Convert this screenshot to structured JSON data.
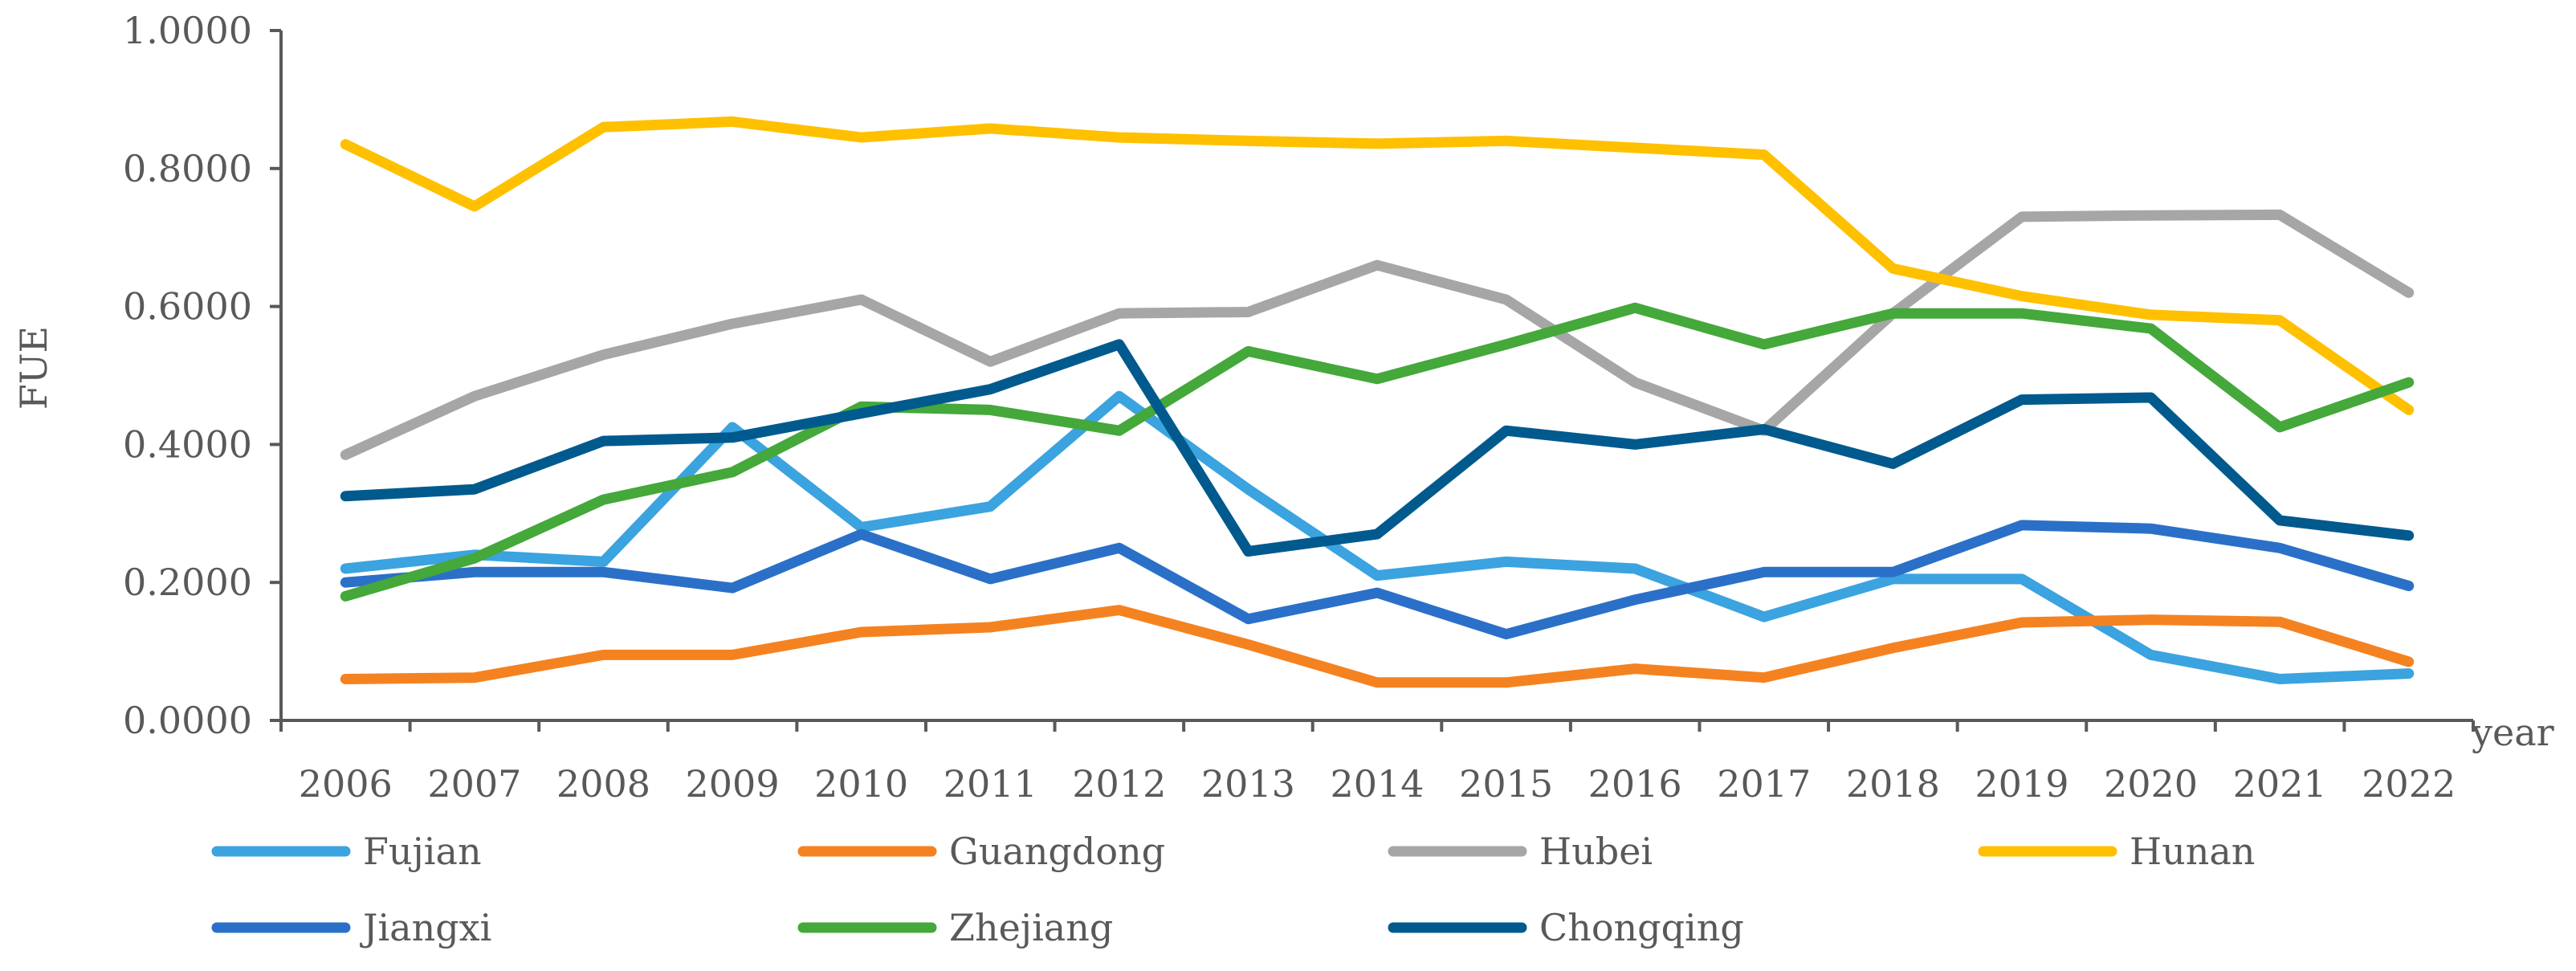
{
  "chart_data": {
    "type": "line",
    "title": "",
    "xlabel": "year",
    "ylabel": "FUE",
    "x": [
      "2006",
      "2007",
      "2008",
      "2009",
      "2010",
      "2011",
      "2012",
      "2013",
      "2014",
      "2015",
      "2016",
      "2017",
      "2018",
      "2019",
      "2020",
      "2021",
      "2022"
    ],
    "ylim": [
      0,
      1
    ],
    "y_ticks": [
      "0.0000",
      "0.2000",
      "0.4000",
      "0.6000",
      "0.8000",
      "1.0000"
    ],
    "grid": false,
    "legend_position": "bottom",
    "series": [
      {
        "name": "Fujian",
        "color": "#3BA3DF",
        "values": [
          0.22,
          0.24,
          0.23,
          0.425,
          0.28,
          0.31,
          0.47,
          0.335,
          0.21,
          0.23,
          0.22,
          0.15,
          0.205,
          0.205,
          0.095,
          0.06,
          0.068
        ]
      },
      {
        "name": "Guangdong",
        "color": "#F58220",
        "values": [
          0.06,
          0.062,
          0.095,
          0.095,
          0.128,
          0.135,
          0.16,
          0.11,
          0.055,
          0.055,
          0.075,
          0.062,
          0.105,
          0.142,
          0.146,
          0.143,
          0.085
        ]
      },
      {
        "name": "Hubei",
        "color": "#A6A6A6",
        "values": [
          0.385,
          0.47,
          0.53,
          0.575,
          0.61,
          0.52,
          0.59,
          0.592,
          0.66,
          0.61,
          0.49,
          0.42,
          0.59,
          0.73,
          0.732,
          0.733,
          0.62
        ]
      },
      {
        "name": "Hunan",
        "color": "#FFC000",
        "values": [
          0.835,
          0.745,
          0.86,
          0.868,
          0.845,
          0.858,
          0.845,
          0.84,
          0.836,
          0.84,
          0.83,
          0.82,
          0.655,
          0.615,
          0.588,
          0.58,
          0.45
        ]
      },
      {
        "name": "Jiangxi",
        "color": "#2B70C8",
        "values": [
          0.2,
          0.215,
          0.215,
          0.192,
          0.27,
          0.205,
          0.25,
          0.147,
          0.185,
          0.125,
          0.175,
          0.215,
          0.215,
          0.283,
          0.278,
          0.25,
          0.195
        ]
      },
      {
        "name": "Zhejiang",
        "color": "#44A83A",
        "values": [
          0.18,
          0.235,
          0.32,
          0.36,
          0.455,
          0.45,
          0.42,
          0.535,
          0.495,
          0.545,
          0.598,
          0.545,
          0.59,
          0.59,
          0.568,
          0.425,
          0.49
        ]
      },
      {
        "name": "Chongqing",
        "color": "#005A8E",
        "values": [
          0.325,
          0.335,
          0.405,
          0.41,
          0.445,
          0.48,
          0.545,
          0.245,
          0.27,
          0.42,
          0.4,
          0.422,
          0.372,
          0.465,
          0.468,
          0.29,
          0.268
        ]
      }
    ]
  }
}
